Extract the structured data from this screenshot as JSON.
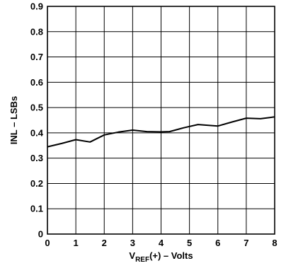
{
  "chart_data": {
    "type": "line",
    "xlabel": "V",
    "xlabel_sub": "REF",
    "xlabel_suffix": "(+) – Volts",
    "ylabel": "INL – LSBs",
    "xlim": [
      0,
      8
    ],
    "ylim": [
      0,
      0.9
    ],
    "x_ticks": [
      "0",
      "1",
      "2",
      "3",
      "4",
      "5",
      "6",
      "7",
      "8"
    ],
    "y_ticks": [
      "0",
      "0.1",
      "0.2",
      "0.3",
      "0.4",
      "0.5",
      "0.6",
      "0.7",
      "0.8",
      "0.9"
    ],
    "grid": true,
    "series": [
      {
        "x": [
          0,
          0.5,
          1.0,
          1.5,
          2.0,
          2.5,
          3.0,
          3.5,
          4.0,
          4.3,
          4.8,
          5.3,
          6.0,
          6.5,
          7.0,
          7.5,
          8.0
        ],
        "y": [
          0.345,
          0.358,
          0.373,
          0.364,
          0.392,
          0.403,
          0.411,
          0.405,
          0.404,
          0.405,
          0.42,
          0.433,
          0.427,
          0.443,
          0.458,
          0.456,
          0.463
        ]
      }
    ],
    "line_color": "#000000"
  }
}
